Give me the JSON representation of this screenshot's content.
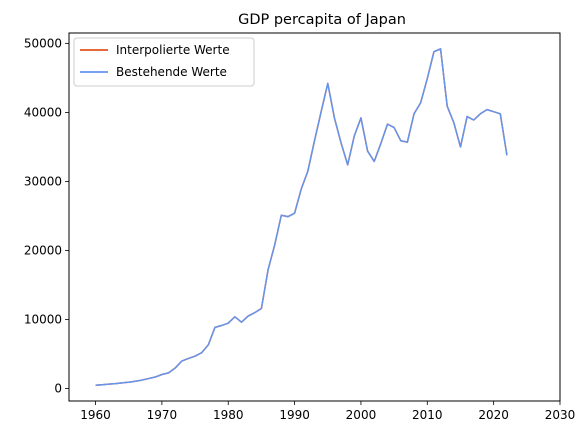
{
  "chart_data": {
    "type": "line",
    "title": "GDP percapita of Japan",
    "xlabel": "",
    "ylabel": "",
    "xlim": [
      1956,
      2030
    ],
    "ylim": [
      -1800,
      51500
    ],
    "xticks": [
      1960,
      1970,
      1980,
      1990,
      2000,
      2010,
      2020,
      2030
    ],
    "yticks": [
      0,
      10000,
      20000,
      30000,
      40000,
      50000
    ],
    "grid": false,
    "legend_position": "top-left",
    "series": [
      {
        "name": "Interpolierte Werte",
        "color": "#e2541d",
        "x": [
          1960,
          1961,
          1962,
          1963,
          1964,
          1965,
          1966,
          1967,
          1968,
          1969,
          1970,
          1971,
          1972,
          1973,
          1974,
          1975,
          1976,
          1977,
          1978,
          1979,
          1980,
          1981,
          1982,
          1983,
          1984,
          1985,
          1986,
          1987,
          1988,
          1989,
          1990,
          1991,
          1992,
          1993,
          1994,
          1995,
          1996,
          1997,
          1998,
          1999,
          2000,
          2001,
          2002,
          2003,
          2004,
          2005,
          2006,
          2007,
          2008,
          2009,
          2010,
          2011,
          2012,
          2013,
          2014,
          2015,
          2016,
          2017,
          2018,
          2019,
          2020,
          2021,
          2022
        ],
        "y": [
          475,
          560,
          640,
          720,
          830,
          920,
          1060,
          1230,
          1450,
          1670,
          2040,
          2270,
          2970,
          3990,
          4360,
          4690,
          5200,
          6340,
          8860,
          9140,
          9470,
          10400,
          9620,
          10500,
          11000,
          11600,
          17200,
          20800,
          25100,
          24900,
          25400,
          28900,
          31500,
          35900,
          40100,
          44200,
          39200,
          35600,
          32400,
          36600,
          39200,
          34400,
          32900,
          35500,
          38300,
          37800,
          35900,
          35700,
          39800,
          41400,
          44900,
          48800,
          49200,
          40900,
          38500,
          35000,
          39400,
          38900,
          39800,
          40400,
          40100,
          39800,
          33800
        ]
      },
      {
        "name": "Bestehende Werte",
        "color": "#6495ed",
        "x": [
          1960,
          1961,
          1962,
          1963,
          1964,
          1965,
          1966,
          1967,
          1968,
          1969,
          1970,
          1971,
          1972,
          1973,
          1974,
          1975,
          1976,
          1977,
          1978,
          1979,
          1980,
          1981,
          1982,
          1983,
          1984,
          1985,
          1986,
          1987,
          1988,
          1989,
          1990,
          1991,
          1992,
          1993,
          1994,
          1995,
          1996,
          1997,
          1998,
          1999,
          2000,
          2001,
          2002,
          2003,
          2004,
          2005,
          2006,
          2007,
          2008,
          2009,
          2010,
          2011,
          2012,
          2013,
          2014,
          2015,
          2016,
          2017,
          2018,
          2019,
          2020,
          2021,
          2022
        ],
        "y": [
          475,
          560,
          640,
          720,
          830,
          920,
          1060,
          1230,
          1450,
          1670,
          2040,
          2270,
          2970,
          3990,
          4360,
          4690,
          5200,
          6340,
          8860,
          9140,
          9470,
          10400,
          9620,
          10500,
          11000,
          11600,
          17200,
          20800,
          25100,
          24900,
          25400,
          28900,
          31500,
          35900,
          40100,
          44200,
          39200,
          35600,
          32400,
          36600,
          39200,
          34400,
          32900,
          35500,
          38300,
          37800,
          35900,
          35700,
          39800,
          41400,
          44900,
          48800,
          49200,
          40900,
          38500,
          35000,
          39400,
          38900,
          39800,
          40400,
          40100,
          39800,
          33800
        ]
      }
    ]
  }
}
